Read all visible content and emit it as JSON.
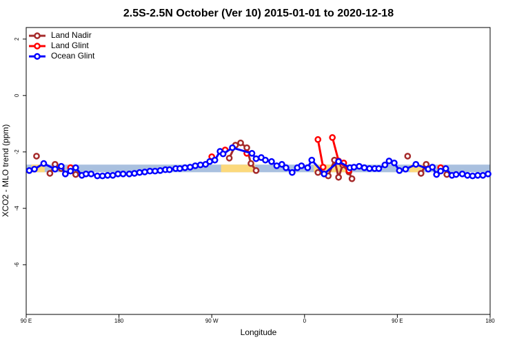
{
  "chart_data": {
    "type": "line",
    "title": "2.5S-2.5N October (Ver 10)   2015-01-01 to 2020-12-18",
    "xlabel": "Longitude",
    "ylabel": "XCO2 - MLO trend (ppm)",
    "xlim": [
      90,
      540
    ],
    "ylim": [
      -7.76,
      2.41
    ],
    "xticks": [
      {
        "value": 90,
        "label": "90 E"
      },
      {
        "value": 180,
        "label": "180"
      },
      {
        "value": 270,
        "label": "90 W"
      },
      {
        "value": 360,
        "label": "0"
      },
      {
        "value": 450,
        "label": "90 E"
      },
      {
        "value": 540,
        "label": "180"
      }
    ],
    "yticks": [
      -6,
      -4,
      -2,
      0,
      2
    ],
    "legend": "top-left",
    "bands": [
      {
        "color": "#a9c0df",
        "x": [
          90,
          540
        ],
        "y": [
          -2.72,
          -2.45
        ]
      },
      {
        "color": "#fcd97c",
        "x": [
          95,
          108
        ],
        "y": [
          -2.72,
          -2.45
        ]
      },
      {
        "color": "#fcd97c",
        "x": [
          279,
          312
        ],
        "y": [
          -2.72,
          -2.45
        ]
      },
      {
        "color": "#fcd97c",
        "x": [
          369,
          406
        ],
        "y": [
          -2.72,
          -2.45
        ]
      },
      {
        "color": "#fcd97c",
        "x": [
          462,
          475
        ],
        "y": [
          -2.72,
          -2.45
        ]
      }
    ],
    "series": [
      {
        "name": "Land Nadir",
        "color": "#a52a2a",
        "x": [
          100,
          null,
          113,
          118,
          124,
          null,
          138,
          null,
          287,
          293,
          298,
          304,
          308,
          313,
          null,
          373,
          383,
          389,
          393,
          397,
          403,
          406,
          null,
          460,
          null,
          473,
          478,
          null,
          498
        ],
        "values": [
          -2.15,
          null,
          -2.76,
          -2.44,
          -2.59,
          null,
          -2.8,
          null,
          -2.22,
          -1.76,
          -1.68,
          -1.85,
          -2.41,
          -2.66,
          null,
          -2.73,
          -2.85,
          -2.29,
          -2.9,
          -2.46,
          -2.71,
          -2.95,
          null,
          -2.15,
          null,
          -2.76,
          -2.44,
          null,
          -2.8
        ]
      },
      {
        "name": "Land Glint",
        "color": "#ff0000",
        "x": [
          133,
          null,
          270,
          null,
          283,
          null,
          304,
          null,
          373,
          378,
          null,
          387,
          393,
          398,
          403,
          null,
          492
        ],
        "values": [
          -2.56,
          null,
          -2.17,
          null,
          -1.93,
          null,
          -2.05,
          null,
          -1.56,
          -2.54,
          null,
          -1.49,
          -2.32,
          -2.39,
          -2.66,
          null,
          -2.56
        ]
      },
      {
        "name": "Ocean Glint",
        "color": "#0000ff",
        "x": [
          93,
          98,
          107,
          118,
          124,
          128,
          133,
          138,
          144,
          148,
          153,
          159,
          164,
          169,
          174,
          179,
          184,
          190,
          195,
          200,
          205,
          210,
          215,
          220,
          225,
          229,
          235,
          239,
          244,
          249,
          254,
          259,
          264,
          268,
          273,
          278,
          281,
          290,
          309,
          313,
          318,
          322,
          328,
          333,
          338,
          342,
          348,
          353,
          357,
          363,
          367,
          379,
          393,
          404,
          408,
          413,
          418,
          423,
          428,
          432,
          438,
          442,
          447,
          452,
          458,
          468,
          480,
          484,
          488,
          492,
          497,
          503,
          507,
          513,
          518,
          523,
          528,
          533,
          538
        ],
        "values": [
          -2.66,
          -2.61,
          -2.41,
          -2.61,
          -2.51,
          -2.78,
          -2.68,
          -2.56,
          -2.83,
          -2.78,
          -2.78,
          -2.85,
          -2.85,
          -2.83,
          -2.83,
          -2.78,
          -2.78,
          -2.78,
          -2.76,
          -2.73,
          -2.71,
          -2.68,
          -2.68,
          -2.66,
          -2.63,
          -2.63,
          -2.59,
          -2.59,
          -2.56,
          -2.54,
          -2.49,
          -2.46,
          -2.44,
          -2.34,
          -2.29,
          -1.98,
          -2.07,
          -1.85,
          -2.05,
          -2.24,
          -2.2,
          -2.29,
          -2.34,
          -2.49,
          -2.44,
          -2.56,
          -2.73,
          -2.56,
          -2.49,
          -2.56,
          -2.29,
          -2.78,
          -2.34,
          -2.56,
          -2.54,
          -2.51,
          -2.56,
          -2.59,
          -2.59,
          -2.59,
          -2.46,
          -2.32,
          -2.39,
          -2.66,
          -2.61,
          -2.44,
          -2.61,
          -2.54,
          -2.8,
          -2.68,
          -2.59,
          -2.83,
          -2.8,
          -2.78,
          -2.83,
          -2.85,
          -2.83,
          -2.83,
          -2.78
        ]
      }
    ]
  }
}
